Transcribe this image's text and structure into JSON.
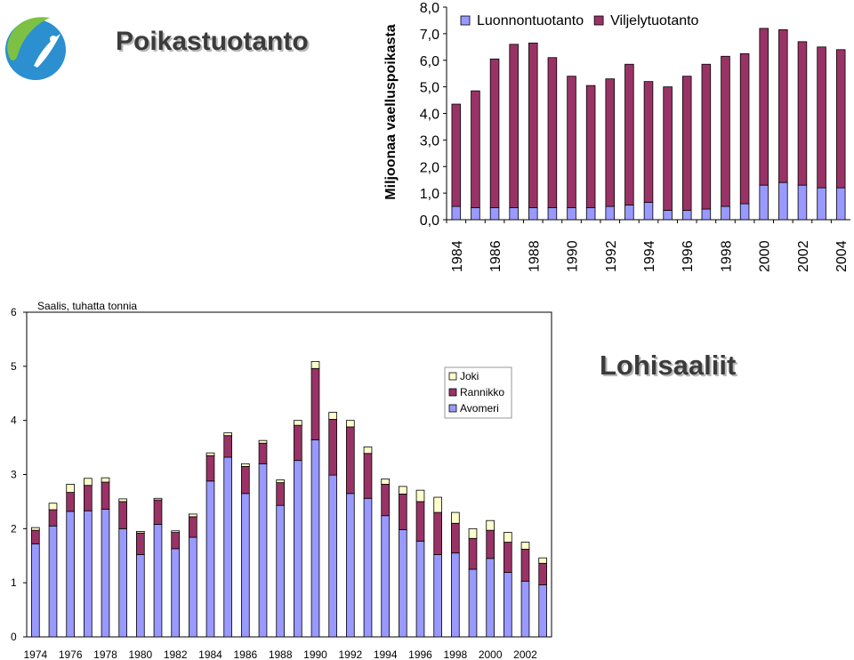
{
  "logo": {
    "name": "fish-logo-icon",
    "colors": [
      "#2b8fd0",
      "#7cc143"
    ]
  },
  "titles": {
    "top": "Poikastuotanto",
    "bottom": "Lohisaaliit"
  },
  "chart_data": [
    {
      "type": "bar",
      "stacked": true,
      "ylabel": "Miljoonaa vaelluspoikasta",
      "ylim": [
        0,
        8
      ],
      "yticks": [
        "0,0",
        "1,0",
        "2,0",
        "3,0",
        "4,0",
        "5,0",
        "6,0",
        "7,0",
        "8,0"
      ],
      "xtick_labels": [
        "1984",
        "1986",
        "1988",
        "1990",
        "1992",
        "1994",
        "1996",
        "1998",
        "2000",
        "2002",
        "2004"
      ],
      "categories": [
        "1984",
        "1985",
        "1986",
        "1987",
        "1988",
        "1989",
        "1990",
        "1991",
        "1992",
        "1993",
        "1994",
        "1995",
        "1996",
        "1997",
        "1998",
        "1999",
        "2000",
        "2001",
        "2002",
        "2003",
        "2004"
      ],
      "legend_position": "top",
      "series": [
        {
          "name": "Luonnontuotanto",
          "color": "#9999ff",
          "values": [
            0.5,
            0.45,
            0.45,
            0.45,
            0.45,
            0.45,
            0.45,
            0.45,
            0.5,
            0.55,
            0.65,
            0.35,
            0.35,
            0.4,
            0.5,
            0.6,
            1.3,
            1.4,
            1.3,
            1.2,
            1.2
          ]
        },
        {
          "name": "Viljelytuotanto",
          "color": "#993366",
          "values": [
            3.85,
            4.4,
            5.6,
            6.15,
            6.2,
            5.65,
            4.95,
            4.6,
            4.8,
            5.3,
            4.55,
            4.65,
            5.05,
            5.45,
            5.65,
            5.65,
            5.9,
            5.75,
            5.4,
            5.3,
            5.2
          ]
        }
      ]
    },
    {
      "type": "bar",
      "stacked": true,
      "ylabel": "Saalis, tuhatta tonnia",
      "ylim": [
        0,
        6
      ],
      "yticks": [
        "0",
        "1",
        "2",
        "3",
        "4",
        "5",
        "6"
      ],
      "xtick_labels": [
        "1974",
        "1976",
        "1978",
        "1980",
        "1982",
        "1984",
        "1986",
        "1988",
        "1990",
        "1992",
        "1994",
        "1996",
        "1998",
        "2000",
        "2002"
      ],
      "categories": [
        "1974",
        "1975",
        "1976",
        "1977",
        "1978",
        "1979",
        "1980",
        "1981",
        "1982",
        "1983",
        "1984",
        "1985",
        "1986",
        "1987",
        "1988",
        "1989",
        "1990",
        "1991",
        "1992",
        "1993",
        "1994",
        "1995",
        "1996",
        "1997",
        "1998",
        "1999",
        "2000",
        "2001",
        "2002",
        "2003"
      ],
      "legend_position": "top-right",
      "series": [
        {
          "name": "Avomeri",
          "color": "#9999ff",
          "values": [
            1.72,
            2.05,
            2.32,
            2.33,
            2.36,
            2.0,
            1.52,
            2.08,
            1.63,
            1.84,
            2.88,
            3.32,
            2.65,
            3.2,
            2.43,
            3.26,
            3.64,
            2.99,
            2.65,
            2.56,
            2.24,
            1.98,
            1.77,
            1.52,
            1.55,
            1.25,
            1.45,
            1.19,
            1.03,
            0.96
          ]
        },
        {
          "name": "Rannikko",
          "color": "#993366",
          "values": [
            0.25,
            0.3,
            0.35,
            0.47,
            0.5,
            0.5,
            0.4,
            0.45,
            0.3,
            0.38,
            0.47,
            0.4,
            0.5,
            0.38,
            0.42,
            0.65,
            1.32,
            1.03,
            1.23,
            0.83,
            0.58,
            0.66,
            0.73,
            0.78,
            0.55,
            0.57,
            0.52,
            0.56,
            0.59,
            0.4
          ]
        },
        {
          "name": "Joki",
          "color": "#ffffcc",
          "values": [
            0.05,
            0.12,
            0.15,
            0.13,
            0.08,
            0.05,
            0.03,
            0.03,
            0.03,
            0.05,
            0.05,
            0.05,
            0.05,
            0.05,
            0.05,
            0.09,
            0.13,
            0.13,
            0.12,
            0.12,
            0.1,
            0.14,
            0.21,
            0.28,
            0.2,
            0.18,
            0.18,
            0.18,
            0.13,
            0.1
          ]
        }
      ]
    }
  ]
}
